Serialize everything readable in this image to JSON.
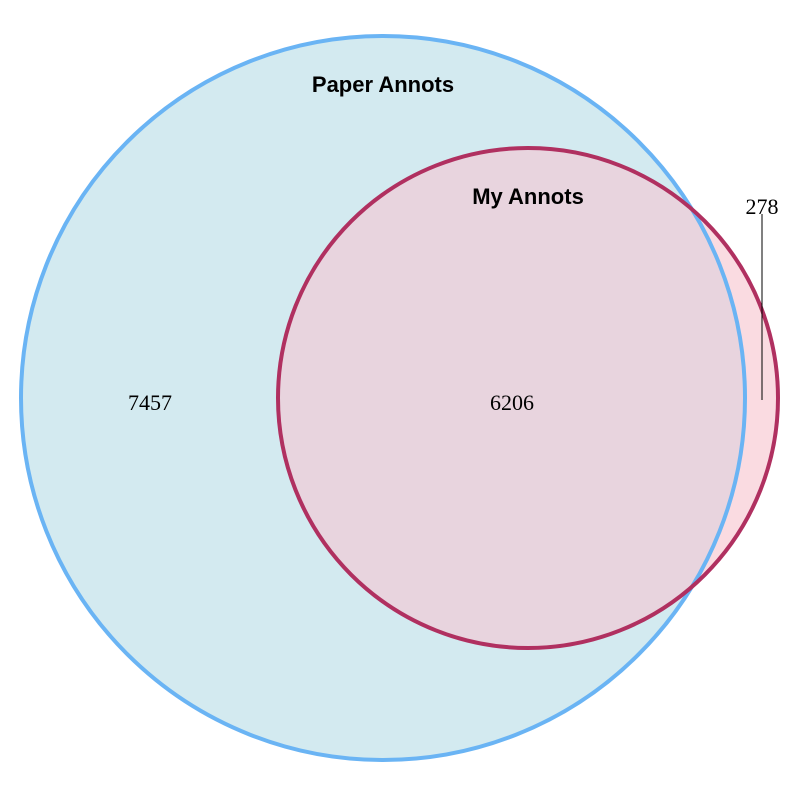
{
  "sets": [
    {
      "name": "Paper Annots",
      "fill": "#d3eaf0",
      "stroke": "#6ab4f4"
    },
    {
      "name": "My Annots",
      "fill": "#fadbe1",
      "stroke": "#b03060"
    }
  ],
  "overlap_fill": "#e8d4de",
  "counts": {
    "paper_only": "7457",
    "both": "6206",
    "my_only": "278"
  }
}
